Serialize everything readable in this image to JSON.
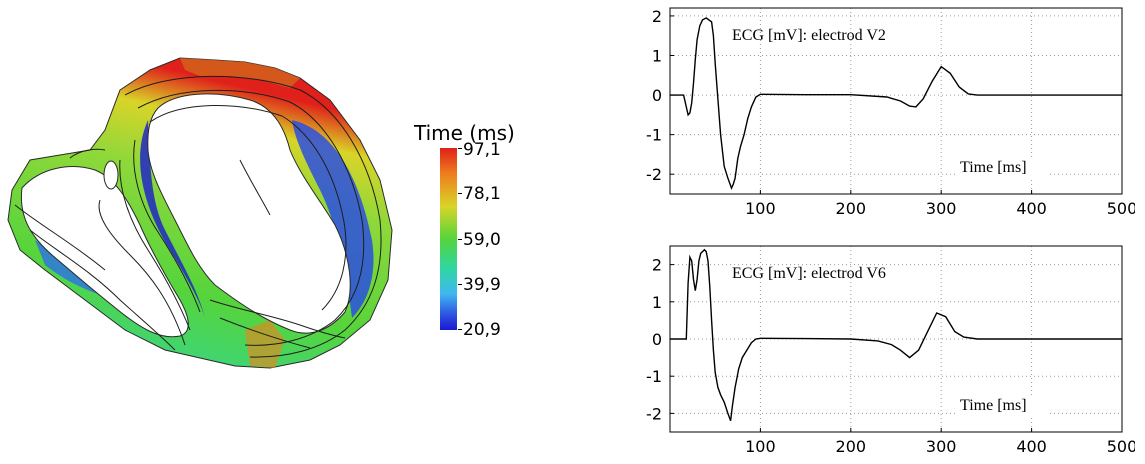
{
  "colorbar": {
    "title": "Time (ms)",
    "labels": [
      "97,1",
      "78,1",
      "59,0",
      "39,9",
      "20,9"
    ],
    "colors": [
      "#e0201a",
      "#ee7d1c",
      "#d9d428",
      "#55d43c",
      "#2fd6a0",
      "#3fb8f0",
      "#1a1ad0"
    ]
  },
  "chart_data": [
    {
      "type": "line",
      "annotation": "ECG [mV]: electrod V2",
      "xlabel": "Time [ms]",
      "xlim": [
        0,
        500
      ],
      "ylim": [
        -2.5,
        2.2
      ],
      "xticks": [
        100,
        200,
        300,
        400,
        500
      ],
      "yticks": [
        -2,
        -1,
        0,
        1,
        2
      ],
      "grid": true,
      "x": [
        0,
        15,
        18,
        20,
        22,
        24,
        26,
        28,
        30,
        33,
        36,
        40,
        43,
        46,
        48,
        50,
        53,
        56,
        60,
        64,
        68,
        70,
        72,
        75,
        78,
        82,
        86,
        90,
        95,
        100,
        150,
        200,
        240,
        255,
        265,
        272,
        280,
        290,
        300,
        310,
        320,
        330,
        340,
        500
      ],
      "y": [
        0,
        0,
        -0.3,
        -0.5,
        -0.45,
        -0.2,
        0.3,
        0.9,
        1.4,
        1.75,
        1.9,
        1.95,
        1.9,
        1.85,
        1.5,
        0.8,
        -0.1,
        -1.0,
        -1.8,
        -2.1,
        -2.35,
        -2.25,
        -2.1,
        -1.6,
        -1.3,
        -1.0,
        -0.6,
        -0.3,
        -0.05,
        0.02,
        0.01,
        0.01,
        -0.05,
        -0.15,
        -0.28,
        -0.3,
        -0.1,
        0.35,
        0.72,
        0.55,
        0.2,
        0.03,
        0,
        0
      ]
    },
    {
      "type": "line",
      "annotation": "ECG [mV]: electrod V6",
      "xlabel": "Time [ms]",
      "xlim": [
        0,
        500
      ],
      "ylim": [
        -2.5,
        2.5
      ],
      "xticks": [
        100,
        200,
        300,
        400,
        500
      ],
      "yticks": [
        -2,
        -1,
        0,
        1,
        2
      ],
      "grid": true,
      "x": [
        0,
        18,
        20,
        22,
        24,
        26,
        28,
        30,
        32,
        34,
        36,
        38,
        40,
        42,
        44,
        46,
        48,
        50,
        53,
        56,
        60,
        64,
        67,
        69,
        72,
        76,
        80,
        85,
        90,
        95,
        100,
        150,
        200,
        230,
        245,
        255,
        265,
        275,
        285,
        295,
        305,
        315,
        325,
        340,
        500
      ],
      "y": [
        0,
        0,
        1.5,
        2.2,
        2.1,
        1.6,
        1.3,
        1.6,
        2.1,
        2.3,
        2.35,
        2.4,
        2.35,
        2.1,
        1.4,
        0.5,
        -0.3,
        -0.9,
        -1.3,
        -1.5,
        -1.7,
        -2.0,
        -2.2,
        -1.8,
        -1.3,
        -0.8,
        -0.5,
        -0.3,
        -0.1,
        0,
        0.02,
        0.01,
        0,
        -0.05,
        -0.15,
        -0.3,
        -0.5,
        -0.3,
        0.2,
        0.7,
        0.6,
        0.2,
        0.05,
        0,
        0
      ]
    }
  ]
}
